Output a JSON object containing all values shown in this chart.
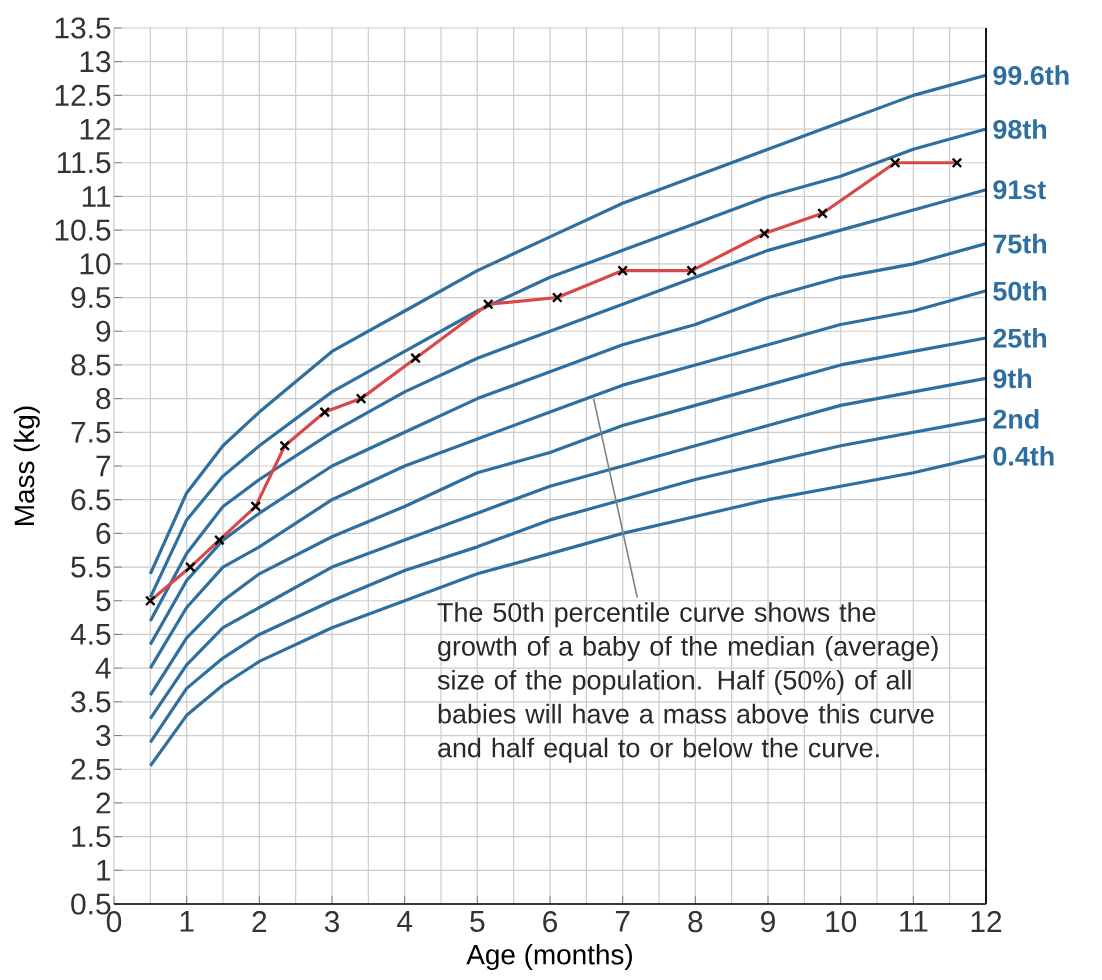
{
  "chart_data": {
    "type": "line",
    "xlabel": "Age (months)",
    "ylabel": "Mass (kg)",
    "xlim": [
      0,
      12
    ],
    "ylim": [
      0.5,
      13.5
    ],
    "xticks": [
      0,
      1,
      2,
      3,
      4,
      5,
      6,
      7,
      8,
      9,
      10,
      11,
      12
    ],
    "yticks": [
      0.5,
      1,
      1.5,
      2,
      2.5,
      3,
      3.5,
      4,
      4.5,
      5,
      5.5,
      6,
      6.5,
      7,
      7.5,
      8,
      8.5,
      9,
      9.5,
      10,
      10.5,
      11,
      11.5,
      12,
      12.5,
      13,
      13.5
    ],
    "grid": true,
    "x": [
      0.5,
      1,
      1.5,
      2,
      3,
      4,
      5,
      6,
      7,
      8,
      9,
      10,
      11,
      12
    ],
    "series": [
      {
        "name": "99.6th",
        "color": "#2f6f9f",
        "values": [
          5.4,
          6.6,
          7.3,
          7.8,
          8.7,
          9.3,
          9.9,
          10.4,
          10.9,
          11.3,
          11.7,
          12.1,
          12.5,
          12.8
        ]
      },
      {
        "name": "98th",
        "color": "#2f6f9f",
        "values": [
          5.05,
          6.2,
          6.85,
          7.3,
          8.1,
          8.7,
          9.3,
          9.8,
          10.2,
          10.6,
          11.0,
          11.3,
          11.7,
          12.0
        ]
      },
      {
        "name": "91st",
        "color": "#2f6f9f",
        "values": [
          4.7,
          5.7,
          6.4,
          6.8,
          7.5,
          8.1,
          8.6,
          9.0,
          9.4,
          9.8,
          10.2,
          10.5,
          10.8,
          11.1
        ]
      },
      {
        "name": "75th",
        "color": "#2f6f9f",
        "values": [
          4.35,
          5.3,
          5.9,
          6.3,
          7.0,
          7.5,
          8.0,
          8.4,
          8.8,
          9.1,
          9.5,
          9.8,
          10.0,
          10.3
        ]
      },
      {
        "name": "50th",
        "color": "#2f6f9f",
        "values": [
          4.0,
          4.9,
          5.5,
          5.8,
          6.5,
          7.0,
          7.4,
          7.8,
          8.2,
          8.5,
          8.8,
          9.1,
          9.3,
          9.6
        ]
      },
      {
        "name": "25th",
        "color": "#2f6f9f",
        "values": [
          3.6,
          4.45,
          5.0,
          5.4,
          5.95,
          6.4,
          6.9,
          7.2,
          7.6,
          7.9,
          8.2,
          8.5,
          8.7,
          8.9
        ]
      },
      {
        "name": "9th",
        "color": "#2f6f9f",
        "values": [
          3.25,
          4.05,
          4.6,
          4.9,
          5.5,
          5.9,
          6.3,
          6.7,
          7.0,
          7.3,
          7.6,
          7.9,
          8.1,
          8.3
        ]
      },
      {
        "name": "2nd",
        "color": "#2f6f9f",
        "values": [
          2.9,
          3.7,
          4.15,
          4.5,
          5.0,
          5.45,
          5.8,
          6.2,
          6.5,
          6.8,
          7.05,
          7.3,
          7.5,
          7.7
        ]
      },
      {
        "name": "0.4th",
        "color": "#2f6f9f",
        "values": [
          2.55,
          3.3,
          3.75,
          4.1,
          4.6,
          5.0,
          5.4,
          5.7,
          6.0,
          6.25,
          6.5,
          6.7,
          6.9,
          7.15
        ]
      },
      {
        "color": "#d94848",
        "marker": "cross",
        "x": [
          0.5,
          1.05,
          1.45,
          1.95,
          2.35,
          2.9,
          3.4,
          4.15,
          5.15,
          6.1,
          7.0,
          7.95,
          8.95,
          9.75,
          10.75,
          11.6
        ],
        "values": [
          5.0,
          5.5,
          5.9,
          6.4,
          7.3,
          7.8,
          8.0,
          8.6,
          9.4,
          9.5,
          9.9,
          9.9,
          10.45,
          10.75,
          11.5,
          11.5
        ]
      }
    ],
    "annotations": [
      {
        "text": "The 50th percentile curve shows the growth of a baby of the median (average) size of the population. Half (50%) of all babies will have a mass above this curve and half equal to or below the curve.",
        "x": 6.6,
        "y": 8.0
      }
    ]
  }
}
